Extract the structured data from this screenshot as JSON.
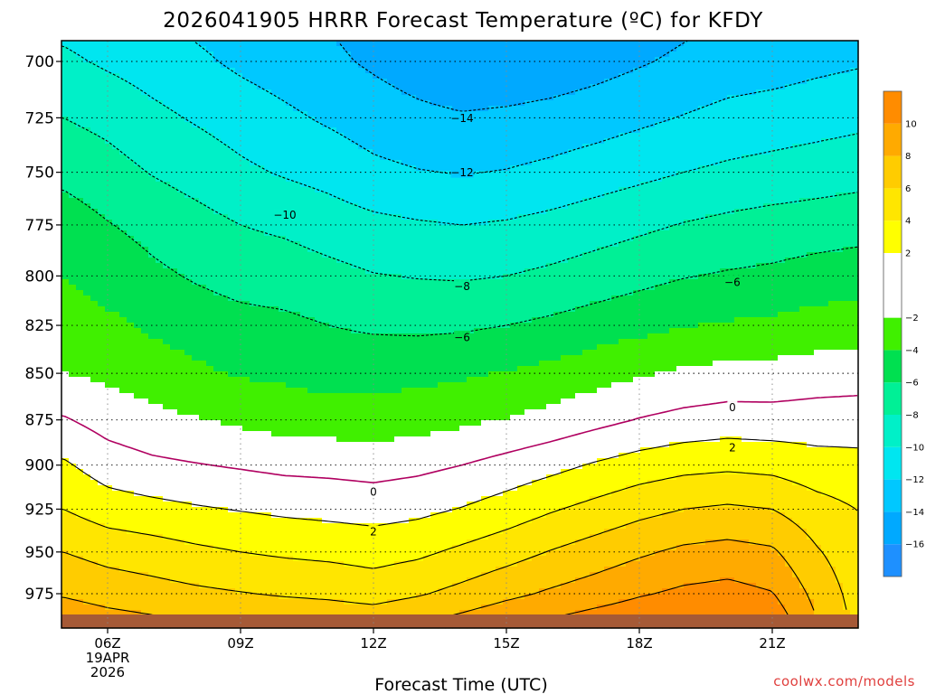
{
  "title": "2026041905 HRRR Forecast Temperature (ºC) for KFDY",
  "credit": "coolwx.com/models",
  "colors": {
    "ground": "#a65a36",
    "freezing_line": "#b00060",
    "contour": "#000000",
    "bins": [
      {
        "lo": -18,
        "hi": -16,
        "color": "#1e90ff"
      },
      {
        "lo": -16,
        "hi": -14,
        "color": "#00a9ff"
      },
      {
        "lo": -14,
        "hi": -12,
        "color": "#00c8ff"
      },
      {
        "lo": -12,
        "hi": -10,
        "color": "#00e6f0"
      },
      {
        "lo": -10,
        "hi": -8,
        "color": "#00f0c8"
      },
      {
        "lo": -8,
        "hi": -6,
        "color": "#00f096"
      },
      {
        "lo": -6,
        "hi": -4,
        "color": "#00e050"
      },
      {
        "lo": -4,
        "hi": -2,
        "color": "#40f000"
      },
      {
        "lo": -2,
        "hi": 2,
        "color": "#ffffff"
      },
      {
        "lo": 2,
        "hi": 4,
        "color": "#ffff00"
      },
      {
        "lo": 4,
        "hi": 6,
        "color": "#ffe600"
      },
      {
        "lo": 6,
        "hi": 8,
        "color": "#ffcc00"
      },
      {
        "lo": 8,
        "hi": 10,
        "color": "#ffaa00"
      },
      {
        "lo": 10,
        "hi": 12,
        "color": "#ff8c00"
      }
    ]
  },
  "chart_data": {
    "type": "heatmap",
    "title": "2026041905 HRRR Forecast Temperature (ºC) for KFDY",
    "xlabel": "Forecast Time (UTC)",
    "ylabel": "",
    "x_unit": "hours (UTC, 19APR2026)",
    "xlim": [
      5,
      23
    ],
    "ylim_hpa": [
      690,
      990
    ],
    "y_scale": "log-pressure (inverted)",
    "x_ticks": [
      {
        "x": 6,
        "label": "06Z",
        "sub": [
          "19APR",
          "2026"
        ]
      },
      {
        "x": 9,
        "label": "09Z"
      },
      {
        "x": 12,
        "label": "12Z"
      },
      {
        "x": 15,
        "label": "15Z"
      },
      {
        "x": 18,
        "label": "18Z"
      },
      {
        "x": 21,
        "label": "21Z"
      }
    ],
    "y_ticks": [
      700,
      725,
      750,
      775,
      800,
      825,
      850,
      875,
      900,
      925,
      950,
      975
    ],
    "grid": true,
    "colorbar_labels": [
      10,
      8,
      6,
      4,
      2,
      -2,
      -4,
      -6,
      -8,
      -10,
      -12,
      -14,
      -16
    ],
    "colorbar_range": [
      -18,
      12
    ],
    "isotherm_labels": [
      {
        "value": -14,
        "x": 14.0,
        "p": 725
      },
      {
        "value": -12,
        "x": 14.0,
        "p": 750
      },
      {
        "value": -10,
        "x": 10.0,
        "p": 770
      },
      {
        "value": -8,
        "x": 14.0,
        "p": 805
      },
      {
        "value": -6,
        "x": 14.0,
        "p": 831
      },
      {
        "value": -6,
        "x": 20.1,
        "p": 803
      },
      {
        "value": 0,
        "x": 12.0,
        "p": 915
      },
      {
        "value": 0,
        "x": 20.1,
        "p": 868
      },
      {
        "value": 2,
        "x": 12.0,
        "p": 938
      },
      {
        "value": 2,
        "x": 20.1,
        "p": 890
      }
    ],
    "temperature_profile": {
      "pressure_levels_hpa": [
        690,
        700,
        725,
        750,
        775,
        800,
        825,
        850,
        875,
        900,
        925,
        950,
        975,
        990
      ],
      "times": [
        5,
        6,
        7,
        8,
        9,
        10,
        11,
        12,
        13,
        14,
        15,
        16,
        17,
        18,
        19,
        20,
        21,
        22,
        23
      ],
      "temperature_c_by_time": [
        [
          -10.2,
          -9.6,
          -8.0,
          -6.5,
          -5.0,
          -4.0,
          -3.0,
          -2.0,
          0.2,
          2.3,
          4.0,
          6.0,
          7.8,
          9.2
        ],
        [
          -10.8,
          -10.3,
          -8.6,
          -7.2,
          -5.9,
          -4.8,
          -3.6,
          -2.4,
          -0.8,
          1.0,
          3.0,
          5.3,
          7.2,
          8.6
        ],
        [
          -11.4,
          -10.9,
          -9.5,
          -8.1,
          -6.6,
          -5.6,
          -4.3,
          -3.0,
          -1.4,
          0.4,
          2.6,
          4.9,
          6.8,
          8.2
        ],
        [
          -12.1,
          -11.6,
          -10.2,
          -8.8,
          -7.3,
          -6.2,
          -5.0,
          -3.6,
          -1.9,
          0.1,
          2.2,
          4.4,
          6.4,
          7.8
        ],
        [
          -12.8,
          -12.4,
          -10.9,
          -9.6,
          -8.0,
          -6.7,
          -5.4,
          -4.2,
          -2.4,
          -0.2,
          1.9,
          4.0,
          6.1,
          7.6
        ],
        [
          -13.4,
          -13.0,
          -11.6,
          -10.2,
          -8.4,
          -6.9,
          -5.6,
          -4.4,
          -2.8,
          -0.5,
          1.6,
          3.7,
          5.8,
          7.4
        ],
        [
          -13.9,
          -13.6,
          -12.3,
          -10.7,
          -9.0,
          -7.4,
          -6.0,
          -4.8,
          -3.0,
          -0.6,
          1.4,
          3.5,
          5.6,
          7.2
        ],
        [
          -14.6,
          -14.3,
          -13.0,
          -11.5,
          -9.5,
          -7.9,
          -6.3,
          -4.7,
          -3.1,
          -0.8,
          1.2,
          3.2,
          5.2,
          7.0
        ],
        [
          -15.3,
          -15.0,
          -13.5,
          -11.9,
          -9.8,
          -8.1,
          -6.4,
          -4.6,
          -2.8,
          -0.5,
          1.5,
          3.6,
          5.8,
          7.6
        ],
        [
          -15.9,
          -15.6,
          -13.8,
          -12.1,
          -10.0,
          -8.2,
          -6.3,
          -4.3,
          -2.4,
          0.0,
          2.1,
          4.4,
          6.6,
          8.4
        ],
        [
          -16.0,
          -15.6,
          -13.6,
          -11.9,
          -9.8,
          -8.0,
          -6.0,
          -3.9,
          -1.9,
          0.7,
          2.9,
          5.2,
          7.5,
          9.3
        ],
        [
          -15.8,
          -15.3,
          -13.3,
          -11.5,
          -9.4,
          -7.6,
          -5.6,
          -3.4,
          -1.3,
          1.4,
          3.8,
          6.1,
          8.3,
          10.0
        ],
        [
          -15.3,
          -14.8,
          -12.9,
          -11.0,
          -8.9,
          -7.1,
          -5.1,
          -2.8,
          -0.6,
          2.2,
          4.6,
          6.9,
          9.0,
          10.7
        ],
        [
          -14.7,
          -14.2,
          -12.4,
          -10.5,
          -8.4,
          -6.6,
          -4.6,
          -2.2,
          0.1,
          2.9,
          5.4,
          7.7,
          9.8,
          11.3
        ],
        [
          -14.1,
          -13.6,
          -11.9,
          -10.0,
          -7.9,
          -6.1,
          -4.1,
          -1.7,
          0.6,
          3.4,
          6.0,
          8.4,
          10.4,
          11.8
        ],
        [
          -13.6,
          -13.1,
          -11.4,
          -9.6,
          -7.5,
          -5.8,
          -3.8,
          -1.4,
          0.9,
          3.6,
          6.3,
          8.7,
          10.7,
          12.0
        ],
        [
          -13.3,
          -12.9,
          -11.1,
          -9.3,
          -7.2,
          -5.6,
          -3.6,
          -1.3,
          0.8,
          3.4,
          6.0,
          8.3,
          10.1,
          11.3
        ],
        [
          -12.9,
          -12.5,
          -10.8,
          -9.0,
          -7.0,
          -5.2,
          -3.2,
          -1.0,
          0.9,
          2.8,
          4.8,
          6.2,
          7.4,
          8.0
        ],
        [
          -12.6,
          -12.2,
          -10.5,
          -8.7,
          -6.8,
          -4.9,
          -3.0,
          -0.9,
          1.0,
          2.6,
          3.9,
          4.6,
          5.0,
          5.2
        ]
      ]
    }
  }
}
